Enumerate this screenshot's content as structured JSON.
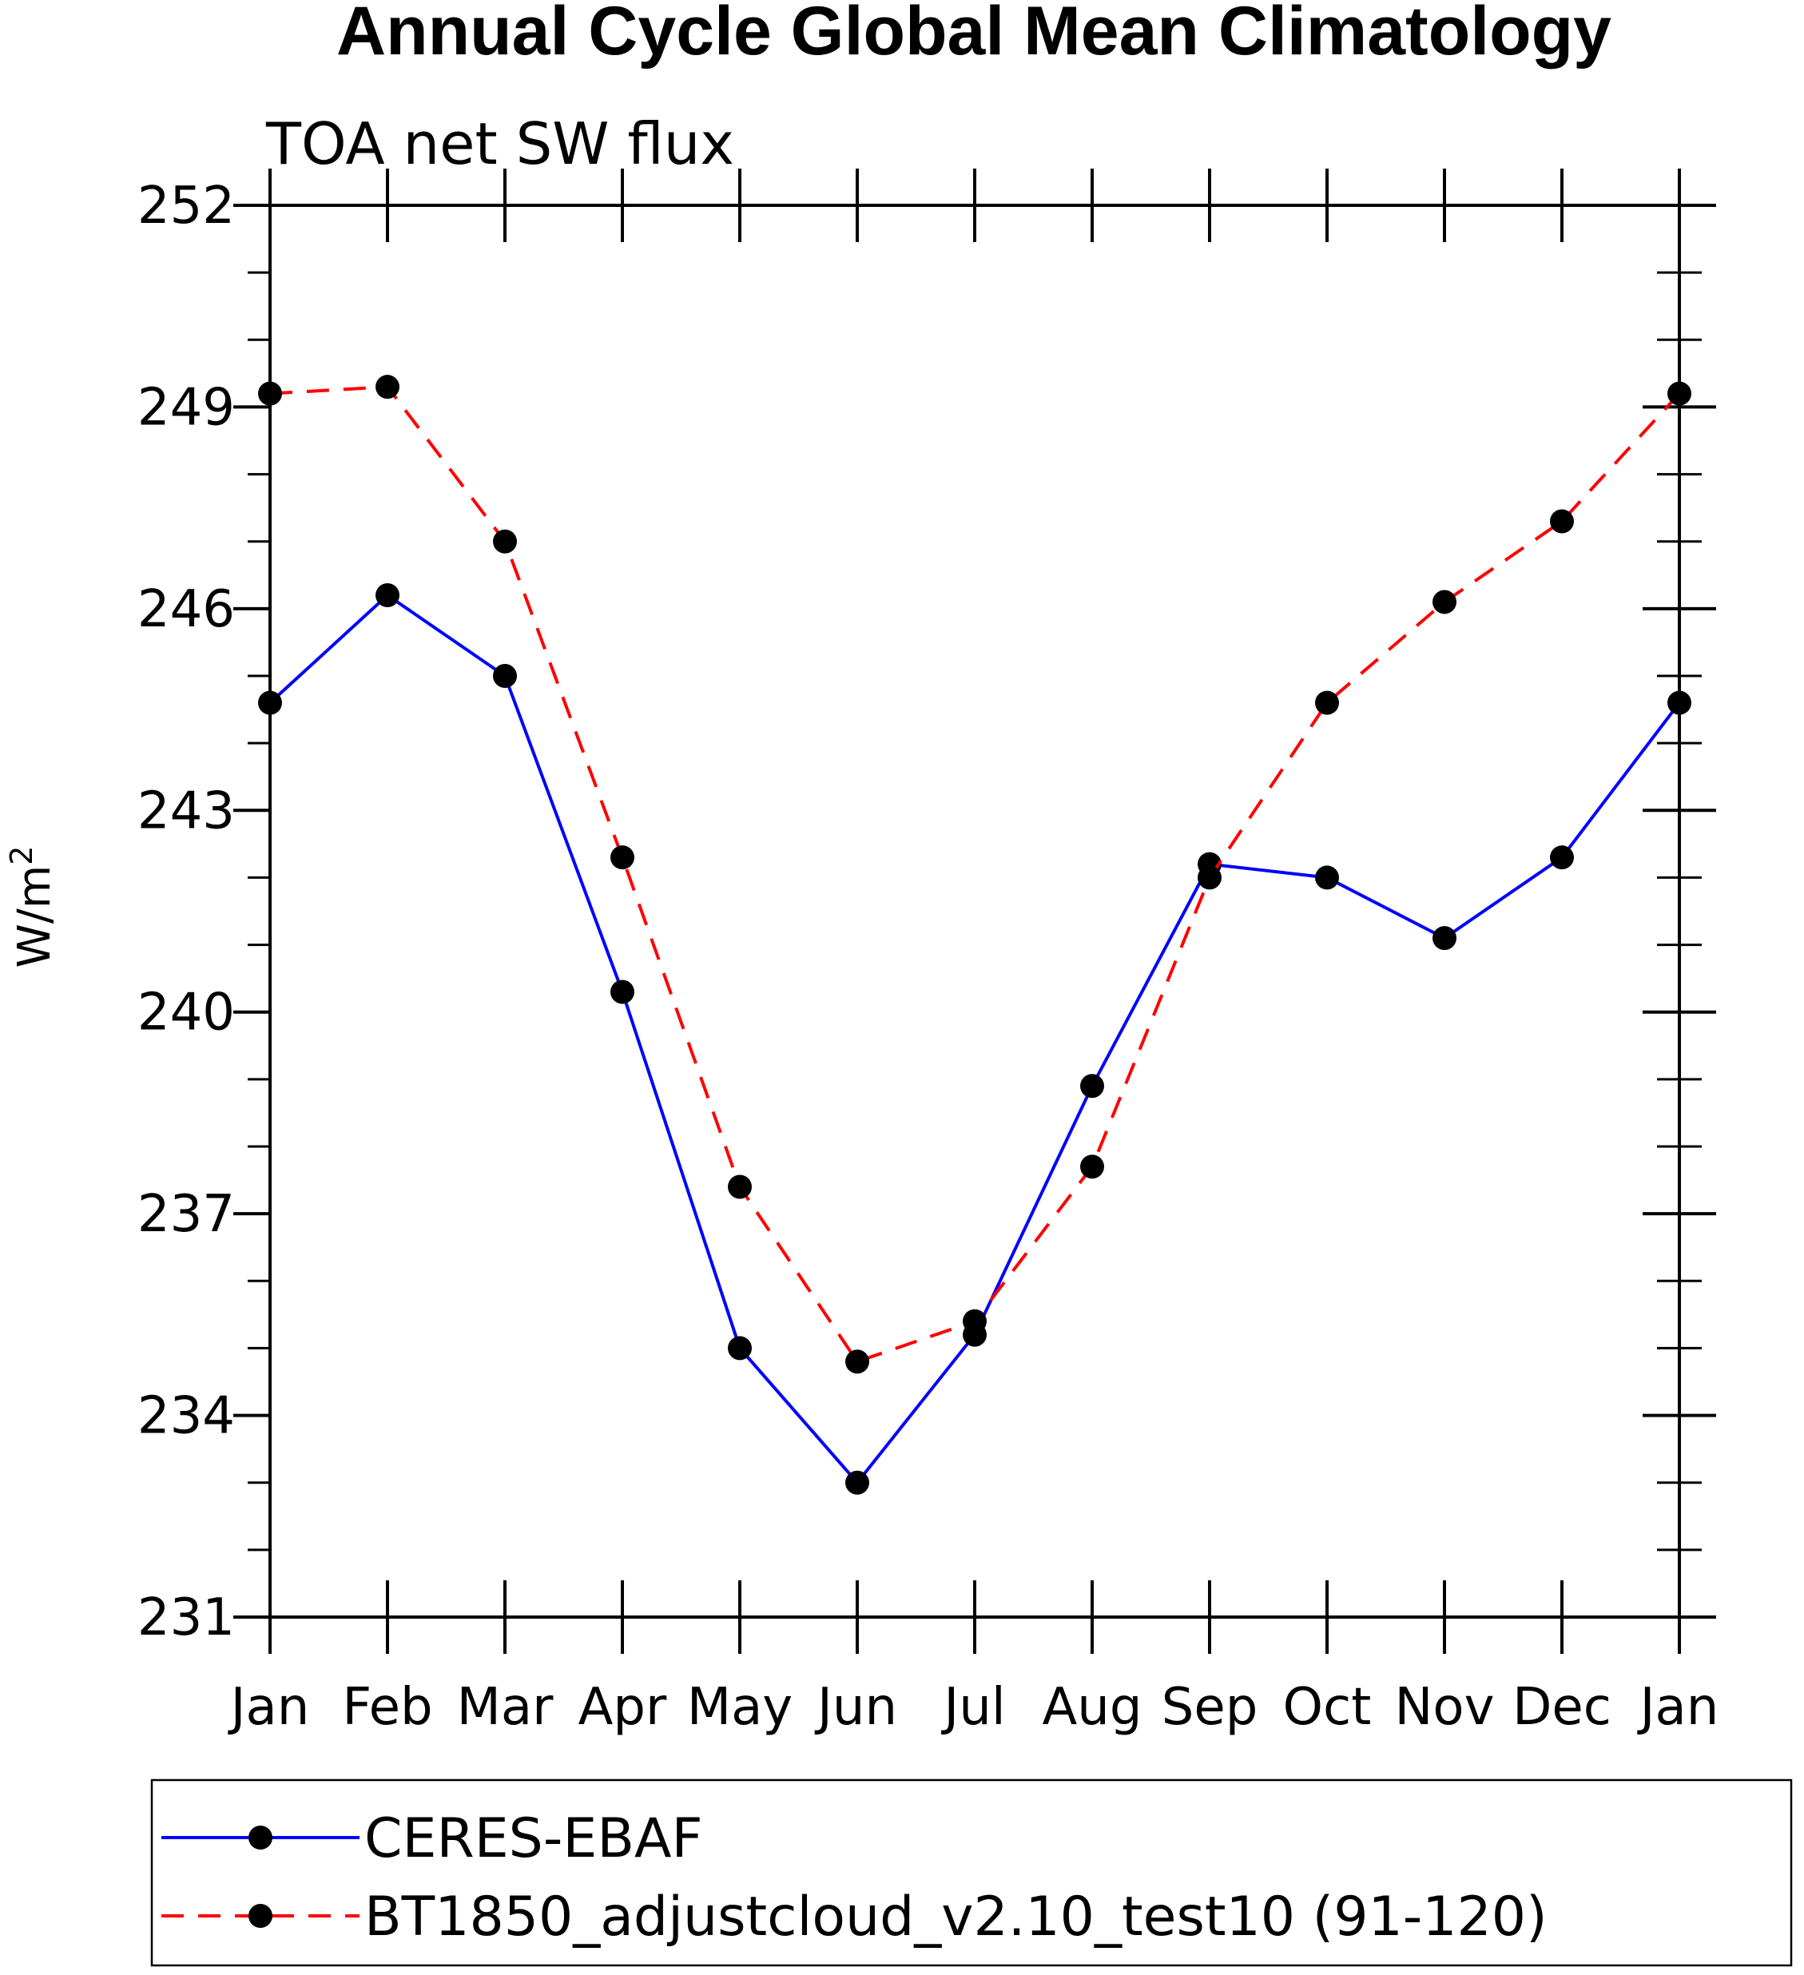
{
  "chart_data": {
    "type": "line",
    "title": "Annual Cycle Global Mean Climatology",
    "subtitle": "TOA net SW flux",
    "xlabel": "",
    "ylabel": "W/m",
    "ylabel_superscript": "2",
    "categories": [
      "Jan",
      "Feb",
      "Mar",
      "Apr",
      "May",
      "Jun",
      "Jul",
      "Aug",
      "Sep",
      "Oct",
      "Nov",
      "Dec",
      "Jan"
    ],
    "ylim": [
      231,
      252
    ],
    "yticks": [
      231,
      234,
      237,
      240,
      243,
      246,
      249,
      252
    ],
    "grid": false,
    "legend_position": "bottom",
    "series": [
      {
        "name": "CERES-EBAF",
        "color": "#0000ff",
        "dash": "solid",
        "marker": "filled-circle",
        "values": [
          244.6,
          246.2,
          245.0,
          240.3,
          235.0,
          233.0,
          235.2,
          238.9,
          242.2,
          242.0,
          241.1,
          242.3,
          244.6
        ]
      },
      {
        "name": "BT1850_adjustcloud_v2.10_test10 (91-120)",
        "color": "#ff0000",
        "dash": "dashed",
        "marker": "filled-circle",
        "values": [
          249.2,
          249.3,
          247.0,
          242.3,
          237.4,
          234.8,
          235.4,
          237.7,
          242.0,
          244.6,
          246.1,
          247.3,
          249.2
        ]
      }
    ]
  }
}
